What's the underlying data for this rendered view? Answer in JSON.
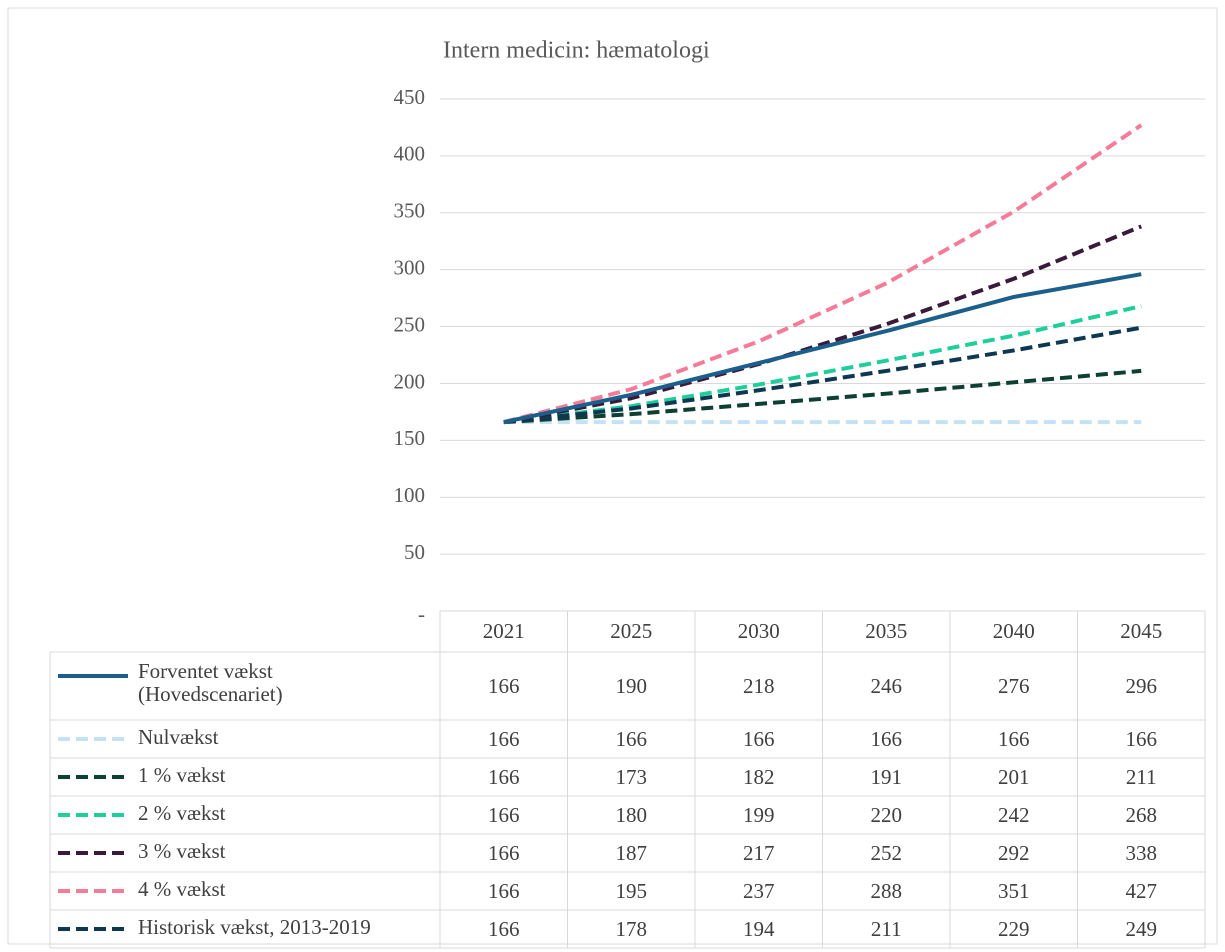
{
  "chart_data": {
    "type": "line",
    "title": "Intern medicin: hæmatologi",
    "categories": [
      "2021",
      "2025",
      "2030",
      "2035",
      "2040",
      "2045"
    ],
    "ylim": [
      0,
      450
    ],
    "yticks": [
      {
        "value": 0,
        "label": "-"
      },
      50,
      100,
      150,
      200,
      250,
      300,
      350,
      400,
      450
    ],
    "grid": true,
    "series": [
      {
        "name": "Forventet vækst (Hovedscenariet)",
        "color": "#1b5f8c",
        "dash": false,
        "values": [
          166,
          190,
          218,
          246,
          276,
          296
        ]
      },
      {
        "name": "Nulvækst",
        "color": "#c3e2f6",
        "dash": true,
        "values": [
          166,
          166,
          166,
          166,
          166,
          166
        ]
      },
      {
        "name": "1 % vækst",
        "color": "#0d3f33",
        "dash": true,
        "values": [
          166,
          173,
          182,
          191,
          201,
          211
        ]
      },
      {
        "name": "2 % vækst",
        "color": "#1ecf9b",
        "dash": true,
        "values": [
          166,
          180,
          199,
          220,
          242,
          268
        ]
      },
      {
        "name": "3 % vækst",
        "color": "#3a1a3b",
        "dash": true,
        "values": [
          166,
          187,
          217,
          252,
          292,
          338
        ]
      },
      {
        "name": "4 % vækst",
        "color": "#f47c99",
        "dash": true,
        "values": [
          166,
          195,
          237,
          288,
          351,
          427
        ]
      },
      {
        "name": "Historisk vækst, 2013-2019",
        "color": "#0e3752",
        "dash": true,
        "values": [
          166,
          178,
          194,
          211,
          229,
          249
        ]
      }
    ]
  }
}
